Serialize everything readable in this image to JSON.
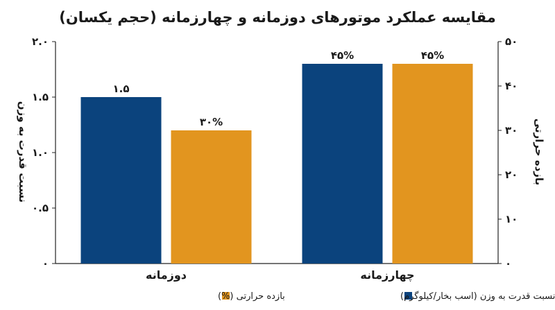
{
  "chart_data": {
    "type": "bar",
    "title": "مقایسه عملکرد موتورهای دوزمانه و چهارزمانه (حجم یکسان)",
    "categories": [
      "دوزمانه",
      "چهارزمانه"
    ],
    "series": [
      {
        "name": "نسبت قدرت به وزن (اسب بخار/کیلوگرم)",
        "axis": "left",
        "values": [
          1.5,
          1.8
        ],
        "labels": [
          "۱.۵",
          ""
        ],
        "color": "#0b437d"
      },
      {
        "name": "بازده حرارتی (%)",
        "axis": "right",
        "values": [
          30,
          45
        ],
        "labels": [
          "۳۰%",
          "۴۵%"
        ],
        "color": "#e2951f"
      }
    ],
    "left_axis": {
      "label": "نسبت قدرت به وزن",
      "ylim": [
        0,
        2.0
      ],
      "ticks": [
        0,
        0.5,
        1.0,
        1.5,
        2.0
      ],
      "tick_labels": [
        "۰",
        "۰.۵",
        "۱.۰",
        "۱.۵",
        "۲.۰"
      ]
    },
    "right_axis": {
      "label": "بازده حرارتی",
      "ylim": [
        0,
        50
      ],
      "ticks": [
        0,
        10,
        20,
        30,
        40,
        50
      ],
      "tick_labels": [
        "۰",
        "۱۰",
        "۲۰",
        "۳۰",
        "۴۰",
        "۵۰"
      ]
    },
    "top_labels": [
      "",
      "۴۵%"
    ],
    "legend_position": "bottom-center",
    "grid": false
  }
}
